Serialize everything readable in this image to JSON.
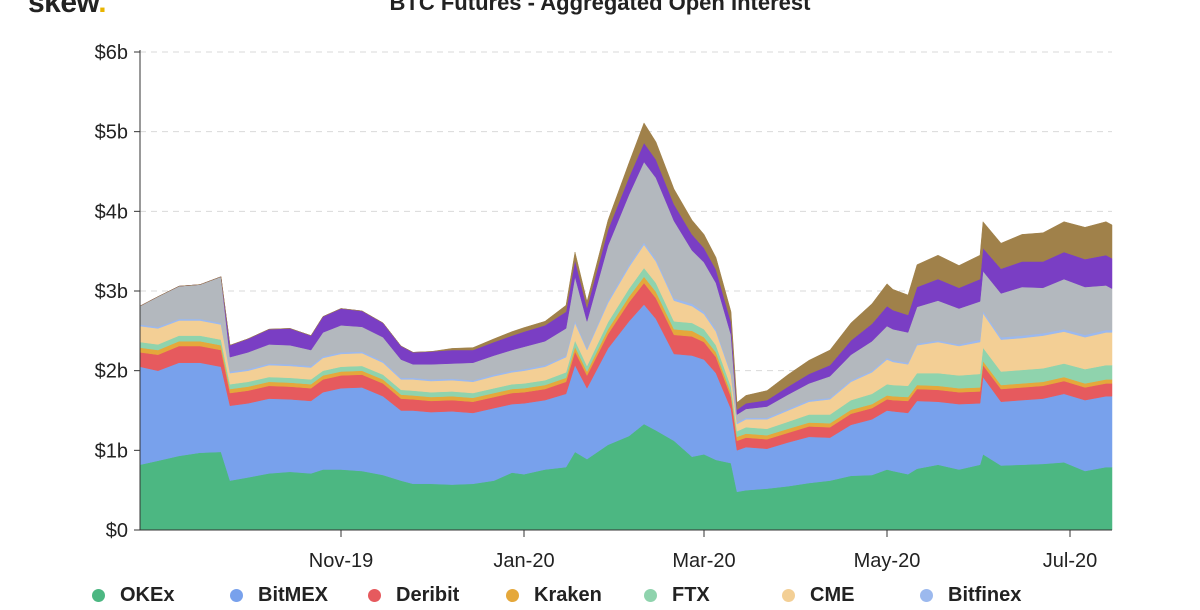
{
  "logo": {
    "text": "skew",
    "dot": "."
  },
  "chart_data": {
    "type": "area",
    "title": "BTC Futures - Aggregated Open Interest",
    "xlabel": "",
    "ylabel": "",
    "stacked": true,
    "x_range": [
      "2019-08-26",
      "2020-07-15"
    ],
    "ylim": [
      0,
      6
    ],
    "y_ticks": [
      0,
      1,
      2,
      3,
      4,
      5,
      6
    ],
    "y_tick_labels": [
      "$0",
      "$1b",
      "$2b",
      "$3b",
      "$4b",
      "$5b",
      "$6b"
    ],
    "x_ticks": [
      "2019-11-01",
      "2020-01-01",
      "2020-03-01",
      "2020-05-01",
      "2020-07-01"
    ],
    "x_tick_labels": [
      "Nov-19",
      "Jan-20",
      "Mar-20",
      "May-20",
      "Jul-20"
    ],
    "grid": "horizontal dashed",
    "legend_position": "bottom",
    "x": [
      "2019-08-26",
      "2019-09-01",
      "2019-09-08",
      "2019-09-15",
      "2019-09-22",
      "2019-09-25",
      "2019-10-01",
      "2019-10-08",
      "2019-10-15",
      "2019-10-22",
      "2019-10-26",
      "2019-11-01",
      "2019-11-08",
      "2019-11-15",
      "2019-11-21",
      "2019-11-25",
      "2019-12-01",
      "2019-12-08",
      "2019-12-15",
      "2019-12-22",
      "2019-12-28",
      "2020-01-01",
      "2020-01-08",
      "2020-01-15",
      "2020-01-18",
      "2020-01-22",
      "2020-01-29",
      "2020-02-05",
      "2020-02-10",
      "2020-02-14",
      "2020-02-20",
      "2020-02-26",
      "2020-03-01",
      "2020-03-05",
      "2020-03-10",
      "2020-03-12",
      "2020-03-15",
      "2020-03-22",
      "2020-03-29",
      "2020-04-05",
      "2020-04-12",
      "2020-04-19",
      "2020-04-26",
      "2020-05-01",
      "2020-05-03",
      "2020-05-08",
      "2020-05-11",
      "2020-05-18",
      "2020-05-25",
      "2020-06-01",
      "2020-06-02",
      "2020-06-08",
      "2020-06-15",
      "2020-06-22",
      "2020-06-29",
      "2020-07-06",
      "2020-07-13",
      "2020-07-15"
    ],
    "series": [
      {
        "name": "OKEx",
        "color": "#4cb782",
        "values": [
          0.82,
          0.87,
          0.93,
          0.97,
          0.98,
          0.62,
          0.66,
          0.71,
          0.73,
          0.71,
          0.76,
          0.76,
          0.74,
          0.69,
          0.62,
          0.58,
          0.58,
          0.57,
          0.58,
          0.62,
          0.72,
          0.7,
          0.76,
          0.79,
          0.98,
          0.89,
          1.07,
          1.18,
          1.33,
          1.25,
          1.12,
          0.92,
          0.95,
          0.88,
          0.84,
          0.48,
          0.5,
          0.52,
          0.55,
          0.59,
          0.62,
          0.68,
          0.69,
          0.76,
          0.74,
          0.7,
          0.77,
          0.82,
          0.76,
          0.82,
          0.95,
          0.81,
          0.82,
          0.83,
          0.85,
          0.74,
          0.79,
          0.79
        ]
      },
      {
        "name": "BitMEX",
        "color": "#78a1ec",
        "values": [
          1.23,
          1.13,
          1.17,
          1.13,
          1.07,
          0.94,
          0.93,
          0.94,
          0.91,
          0.91,
          0.97,
          1.02,
          1.05,
          0.99,
          0.88,
          0.92,
          0.9,
          0.92,
          0.89,
          0.91,
          0.86,
          0.89,
          0.87,
          0.92,
          1.09,
          0.89,
          1.21,
          1.44,
          1.5,
          1.4,
          1.09,
          1.27,
          1.19,
          1.09,
          0.68,
          0.52,
          0.54,
          0.5,
          0.55,
          0.58,
          0.54,
          0.64,
          0.7,
          0.74,
          0.75,
          0.77,
          0.85,
          0.79,
          0.82,
          0.77,
          0.97,
          0.8,
          0.81,
          0.82,
          0.86,
          0.89,
          0.89,
          0.89
        ]
      },
      {
        "name": "Deribit",
        "color": "#e65a5e",
        "values": [
          0.18,
          0.2,
          0.21,
          0.21,
          0.21,
          0.16,
          0.16,
          0.16,
          0.16,
          0.16,
          0.16,
          0.16,
          0.16,
          0.16,
          0.15,
          0.14,
          0.14,
          0.14,
          0.14,
          0.14,
          0.14,
          0.14,
          0.14,
          0.15,
          0.17,
          0.16,
          0.18,
          0.24,
          0.27,
          0.26,
          0.24,
          0.24,
          0.22,
          0.2,
          0.15,
          0.12,
          0.12,
          0.12,
          0.12,
          0.13,
          0.13,
          0.14,
          0.14,
          0.14,
          0.14,
          0.15,
          0.15,
          0.15,
          0.15,
          0.15,
          0.15,
          0.16,
          0.16,
          0.16,
          0.16,
          0.16,
          0.16,
          0.16
        ]
      },
      {
        "name": "Kraken",
        "color": "#e5a83b",
        "values": [
          0.06,
          0.06,
          0.06,
          0.06,
          0.06,
          0.05,
          0.05,
          0.05,
          0.05,
          0.05,
          0.05,
          0.05,
          0.05,
          0.05,
          0.05,
          0.05,
          0.05,
          0.05,
          0.05,
          0.05,
          0.05,
          0.05,
          0.05,
          0.05,
          0.06,
          0.05,
          0.06,
          0.07,
          0.08,
          0.08,
          0.07,
          0.07,
          0.06,
          0.06,
          0.05,
          0.05,
          0.05,
          0.05,
          0.05,
          0.05,
          0.05,
          0.05,
          0.05,
          0.05,
          0.05,
          0.05,
          0.05,
          0.05,
          0.05,
          0.05,
          0.05,
          0.05,
          0.05,
          0.05,
          0.05,
          0.05,
          0.05,
          0.05
        ]
      },
      {
        "name": "FTX",
        "color": "#8fd3ad",
        "values": [
          0.07,
          0.07,
          0.07,
          0.07,
          0.07,
          0.06,
          0.06,
          0.06,
          0.06,
          0.06,
          0.06,
          0.06,
          0.06,
          0.06,
          0.06,
          0.06,
          0.06,
          0.06,
          0.06,
          0.06,
          0.06,
          0.06,
          0.06,
          0.07,
          0.08,
          0.07,
          0.09,
          0.1,
          0.11,
          0.11,
          0.1,
          0.1,
          0.1,
          0.09,
          0.08,
          0.07,
          0.08,
          0.08,
          0.09,
          0.1,
          0.11,
          0.12,
          0.13,
          0.14,
          0.14,
          0.14,
          0.15,
          0.16,
          0.16,
          0.17,
          0.17,
          0.17,
          0.17,
          0.17,
          0.17,
          0.18,
          0.18,
          0.18
        ]
      },
      {
        "name": "CME",
        "color": "#f3cf95",
        "values": [
          0.2,
          0.2,
          0.19,
          0.19,
          0.19,
          0.14,
          0.14,
          0.15,
          0.15,
          0.15,
          0.16,
          0.16,
          0.16,
          0.15,
          0.13,
          0.14,
          0.14,
          0.14,
          0.14,
          0.15,
          0.15,
          0.16,
          0.17,
          0.19,
          0.22,
          0.2,
          0.24,
          0.27,
          0.29,
          0.27,
          0.26,
          0.21,
          0.19,
          0.17,
          0.15,
          0.09,
          0.1,
          0.12,
          0.14,
          0.16,
          0.19,
          0.23,
          0.27,
          0.31,
          0.29,
          0.27,
          0.35,
          0.39,
          0.37,
          0.4,
          0.43,
          0.4,
          0.4,
          0.41,
          0.4,
          0.4,
          0.41,
          0.41
        ]
      },
      {
        "name": "Bitfinex",
        "color": "#9cb9ee",
        "values": [
          0.02,
          0.02,
          0.02,
          0.02,
          0.02,
          0.02,
          0.02,
          0.02,
          0.02,
          0.02,
          0.02,
          0.02,
          0.02,
          0.02,
          0.02,
          0.02,
          0.02,
          0.02,
          0.02,
          0.02,
          0.02,
          0.02,
          0.02,
          0.02,
          0.03,
          0.02,
          0.03,
          0.03,
          0.03,
          0.03,
          0.03,
          0.03,
          0.03,
          0.03,
          0.02,
          0.02,
          0.02,
          0.02,
          0.02,
          0.02,
          0.02,
          0.02,
          0.02,
          0.02,
          0.02,
          0.02,
          0.02,
          0.02,
          0.02,
          0.03,
          0.03,
          0.03,
          0.03,
          0.03,
          0.03,
          0.03,
          0.03,
          0.03
        ]
      },
      {
        "name": "",
        "color": "#b3b8be",
        "values": [
          0.23,
          0.38,
          0.41,
          0.43,
          0.58,
          0.18,
          0.21,
          0.24,
          0.24,
          0.2,
          0.3,
          0.34,
          0.31,
          0.3,
          0.23,
          0.17,
          0.19,
          0.19,
          0.22,
          0.24,
          0.26,
          0.28,
          0.3,
          0.34,
          0.55,
          0.34,
          0.69,
          0.88,
          1.01,
          1.02,
          0.97,
          0.67,
          0.62,
          0.58,
          0.48,
          0.1,
          0.11,
          0.14,
          0.18,
          0.21,
          0.27,
          0.32,
          0.37,
          0.4,
          0.39,
          0.38,
          0.46,
          0.5,
          0.45,
          0.48,
          0.5,
          0.55,
          0.61,
          0.57,
          0.63,
          0.6,
          0.56,
          0.52
        ]
      },
      {
        "name": "",
        "color": "#7a3ec4",
        "values": [
          0.0,
          0.0,
          0.0,
          0.0,
          0.0,
          0.15,
          0.17,
          0.19,
          0.21,
          0.18,
          0.2,
          0.21,
          0.2,
          0.18,
          0.17,
          0.15,
          0.16,
          0.17,
          0.16,
          0.17,
          0.18,
          0.19,
          0.2,
          0.21,
          0.21,
          0.17,
          0.2,
          0.22,
          0.24,
          0.23,
          0.21,
          0.2,
          0.18,
          0.17,
          0.16,
          0.06,
          0.07,
          0.08,
          0.1,
          0.12,
          0.14,
          0.18,
          0.22,
          0.25,
          0.24,
          0.22,
          0.25,
          0.27,
          0.26,
          0.28,
          0.29,
          0.31,
          0.32,
          0.33,
          0.34,
          0.35,
          0.38,
          0.38
        ]
      },
      {
        "name": "",
        "color": "#a0814a",
        "values": [
          0.0,
          0.0,
          0.0,
          0.0,
          0.0,
          0.0,
          0.0,
          0.0,
          0.0,
          0.0,
          0.0,
          0.0,
          0.0,
          0.0,
          0.0,
          0.0,
          0.0,
          0.02,
          0.03,
          0.04,
          0.05,
          0.05,
          0.05,
          0.08,
          0.1,
          0.08,
          0.12,
          0.18,
          0.25,
          0.22,
          0.19,
          0.18,
          0.17,
          0.15,
          0.13,
          0.09,
          0.1,
          0.12,
          0.15,
          0.17,
          0.19,
          0.22,
          0.25,
          0.28,
          0.26,
          0.25,
          0.28,
          0.3,
          0.28,
          0.3,
          0.33,
          0.32,
          0.34,
          0.36,
          0.38,
          0.4,
          0.42,
          0.42
        ]
      }
    ]
  }
}
